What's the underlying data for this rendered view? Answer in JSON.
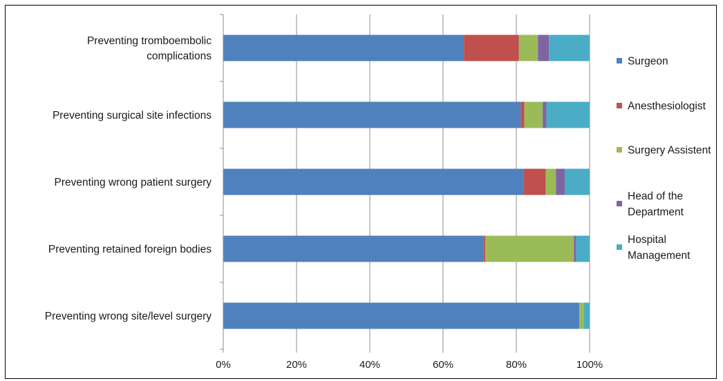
{
  "chart_data": {
    "type": "bar",
    "orientation": "horizontal",
    "stacked": "percent",
    "categories": [
      [
        "Preventing tromboembolic",
        "complications"
      ],
      [
        "Preventing surgical site infections"
      ],
      [
        "Preventing wrong patient surgery"
      ],
      [
        "Preventing retained foreign bodies"
      ],
      [
        "Preventing wrong site/level surgery"
      ]
    ],
    "series": [
      {
        "name": [
          "Surgeon"
        ],
        "color": "#4F81BD",
        "values": [
          65.7,
          81.2,
          82.0,
          71.0,
          97.2
        ]
      },
      {
        "name": [
          "Anesthesiologist"
        ],
        "color": "#C0504D",
        "values": [
          15.0,
          1.0,
          6.0,
          0.5,
          0.0
        ]
      },
      {
        "name": [
          "Surgery Assistent"
        ],
        "color": "#9BBB59",
        "values": [
          5.2,
          5.0,
          2.8,
          24.2,
          1.3
        ]
      },
      {
        "name": [
          "Head of the",
          "Department"
        ],
        "color": "#8064A2",
        "values": [
          3.0,
          1.0,
          2.4,
          0.6,
          0.0
        ]
      },
      {
        "name": [
          "Hospital",
          "Management"
        ],
        "color": "#4BACC6",
        "values": [
          11.1,
          11.8,
          6.8,
          3.7,
          1.5
        ]
      }
    ],
    "xlim": [
      0,
      100
    ],
    "xticks": [
      "0%",
      "20%",
      "40%",
      "60%",
      "80%",
      "100%"
    ],
    "grid": "vertical",
    "legend": "right"
  }
}
